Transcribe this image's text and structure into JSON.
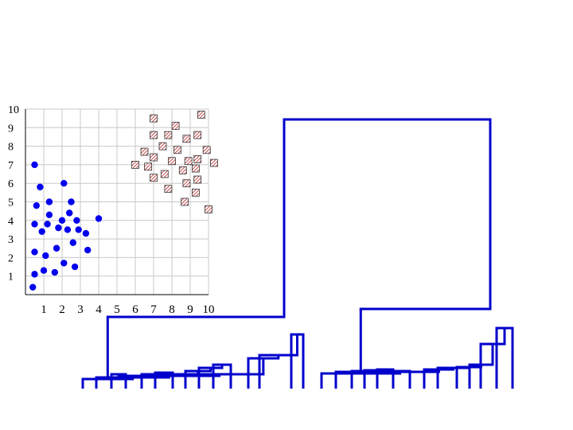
{
  "chart_data": [
    {
      "type": "scatter",
      "xlim": [
        0,
        10
      ],
      "ylim": [
        0,
        10
      ],
      "xticks": [
        "1",
        "2",
        "3",
        "4",
        "5",
        "6",
        "7",
        "8",
        "9",
        "10"
      ],
      "yticks": [
        "1",
        "2",
        "3",
        "4",
        "5",
        "6",
        "7",
        "8",
        "9",
        "10"
      ],
      "grid": true,
      "series": [
        {
          "marker": "circle",
          "color": "#0000ee",
          "points": [
            [
              0.4,
              0.4
            ],
            [
              0.5,
              1.1
            ],
            [
              0.5,
              2.3
            ],
            [
              0.5,
              3.8
            ],
            [
              0.6,
              4.8
            ],
            [
              0.5,
              7.0
            ],
            [
              0.8,
              5.8
            ],
            [
              0.9,
              3.4
            ],
            [
              1.0,
              1.3
            ],
            [
              1.1,
              2.1
            ],
            [
              1.2,
              3.8
            ],
            [
              1.3,
              4.3
            ],
            [
              1.3,
              5.0
            ],
            [
              1.6,
              1.2
            ],
            [
              1.7,
              2.5
            ],
            [
              1.8,
              3.6
            ],
            [
              2.0,
              4.0
            ],
            [
              2.1,
              1.7
            ],
            [
              2.1,
              6.0
            ],
            [
              2.3,
              3.5
            ],
            [
              2.4,
              4.4
            ],
            [
              2.5,
              5.0
            ],
            [
              2.6,
              2.8
            ],
            [
              2.7,
              1.5
            ],
            [
              2.8,
              4.0
            ],
            [
              2.9,
              3.5
            ],
            [
              3.3,
              3.3
            ],
            [
              3.4,
              2.4
            ],
            [
              4.0,
              4.1
            ]
          ]
        },
        {
          "marker": "hatched-square",
          "color": "#aa2222",
          "points": [
            [
              7.0,
              9.5
            ],
            [
              9.6,
              9.7
            ],
            [
              8.2,
              9.1
            ],
            [
              7.0,
              8.6
            ],
            [
              7.8,
              8.6
            ],
            [
              8.8,
              8.4
            ],
            [
              9.4,
              8.6
            ],
            [
              7.5,
              8.0
            ],
            [
              6.5,
              7.7
            ],
            [
              8.3,
              7.8
            ],
            [
              9.9,
              7.8
            ],
            [
              7.0,
              7.4
            ],
            [
              8.0,
              7.2
            ],
            [
              8.9,
              7.2
            ],
            [
              9.4,
              7.3
            ],
            [
              10.3,
              7.1
            ],
            [
              6.0,
              7.0
            ],
            [
              6.7,
              6.9
            ],
            [
              8.6,
              6.7
            ],
            [
              9.3,
              6.8
            ],
            [
              7.0,
              6.3
            ],
            [
              7.6,
              6.5
            ],
            [
              8.8,
              6.0
            ],
            [
              9.4,
              6.2
            ],
            [
              7.8,
              5.7
            ],
            [
              9.3,
              5.5
            ],
            [
              8.7,
              5.0
            ],
            [
              10.0,
              4.6
            ]
          ]
        }
      ]
    },
    {
      "type": "dendrogram",
      "leaf_count": 29,
      "clusters": 2,
      "color": "#0000cc"
    }
  ]
}
